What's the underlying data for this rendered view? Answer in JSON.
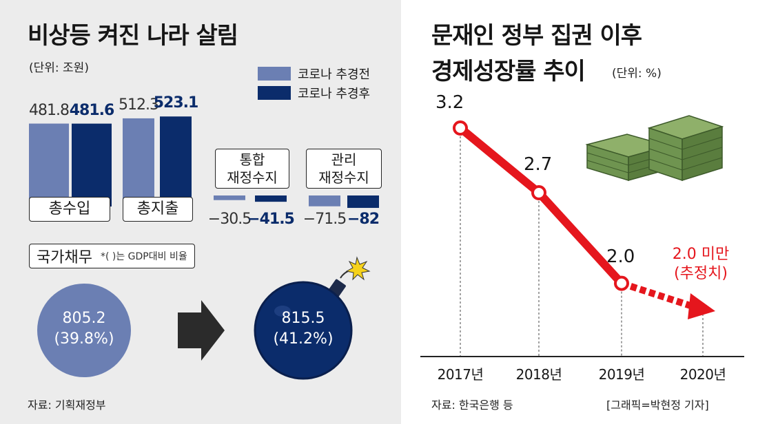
{
  "colors": {
    "before": "#6b7fb3",
    "after": "#0b2c6b",
    "red": "#e5161d",
    "panel_bg": "#ececec"
  },
  "left": {
    "title": "비상등 켜진 나라 살림",
    "unit": "(단위: 조원)",
    "legend": {
      "before": "코로나 추경전",
      "after": "코로나 추경후"
    },
    "source": "자료: 기획재정부"
  },
  "right": {
    "title_line1": "문재인 정부 집권 이후",
    "title_line2": "경제성장률 추이",
    "unit": "(단위: %)",
    "estimate_line1": "2.0 미만",
    "estimate_line2": "(추정치)",
    "source": "자료: 한국은행 등",
    "credit": "[그래픽=박현정 기자]"
  },
  "chart_data": [
    {
      "type": "bar",
      "categories": [
        "총수입",
        "총지출"
      ],
      "series": [
        {
          "name": "코로나 추경전",
          "values": [
            481.8,
            512.3
          ],
          "labels": [
            "481.8",
            "512.3"
          ]
        },
        {
          "name": "코로나 추경후",
          "values": [
            481.6,
            523.1
          ],
          "labels": [
            "481.6",
            "523.1"
          ]
        }
      ]
    },
    {
      "type": "bar",
      "categories": [
        "통합\n재정수지",
        "관리\n재정수지"
      ],
      "category_lines": [
        [
          "통합",
          "재정수지"
        ],
        [
          "관리",
          "재정수지"
        ]
      ],
      "series": [
        {
          "name": "코로나 추경전",
          "values": [
            -30.5,
            -71.5
          ],
          "labels": [
            "−30.5",
            "−71.5"
          ]
        },
        {
          "name": "코로나 추경후",
          "values": [
            -41.5,
            -82
          ],
          "labels": [
            "−41.5",
            "−82"
          ]
        }
      ]
    },
    {
      "type": "bubble",
      "title": "국가채무",
      "note": "*( )는 GDP대비 비율",
      "items": [
        {
          "name": "코로나 추경전",
          "value": 805.2,
          "ratio": 39.8,
          "label": "805.2",
          "ratio_label": "(39.8%)"
        },
        {
          "name": "코로나 추경후",
          "value": 815.5,
          "ratio": 41.2,
          "label": "815.5",
          "ratio_label": "(41.2%)"
        }
      ]
    },
    {
      "type": "line",
      "x": [
        "2017년",
        "2018년",
        "2019년",
        "2020년"
      ],
      "values": [
        3.2,
        2.7,
        2.0,
        2.0
      ],
      "labels": [
        "3.2",
        "2.7",
        "2.0",
        "2.0 미만"
      ],
      "estimated": [
        false,
        false,
        false,
        true
      ]
    }
  ]
}
